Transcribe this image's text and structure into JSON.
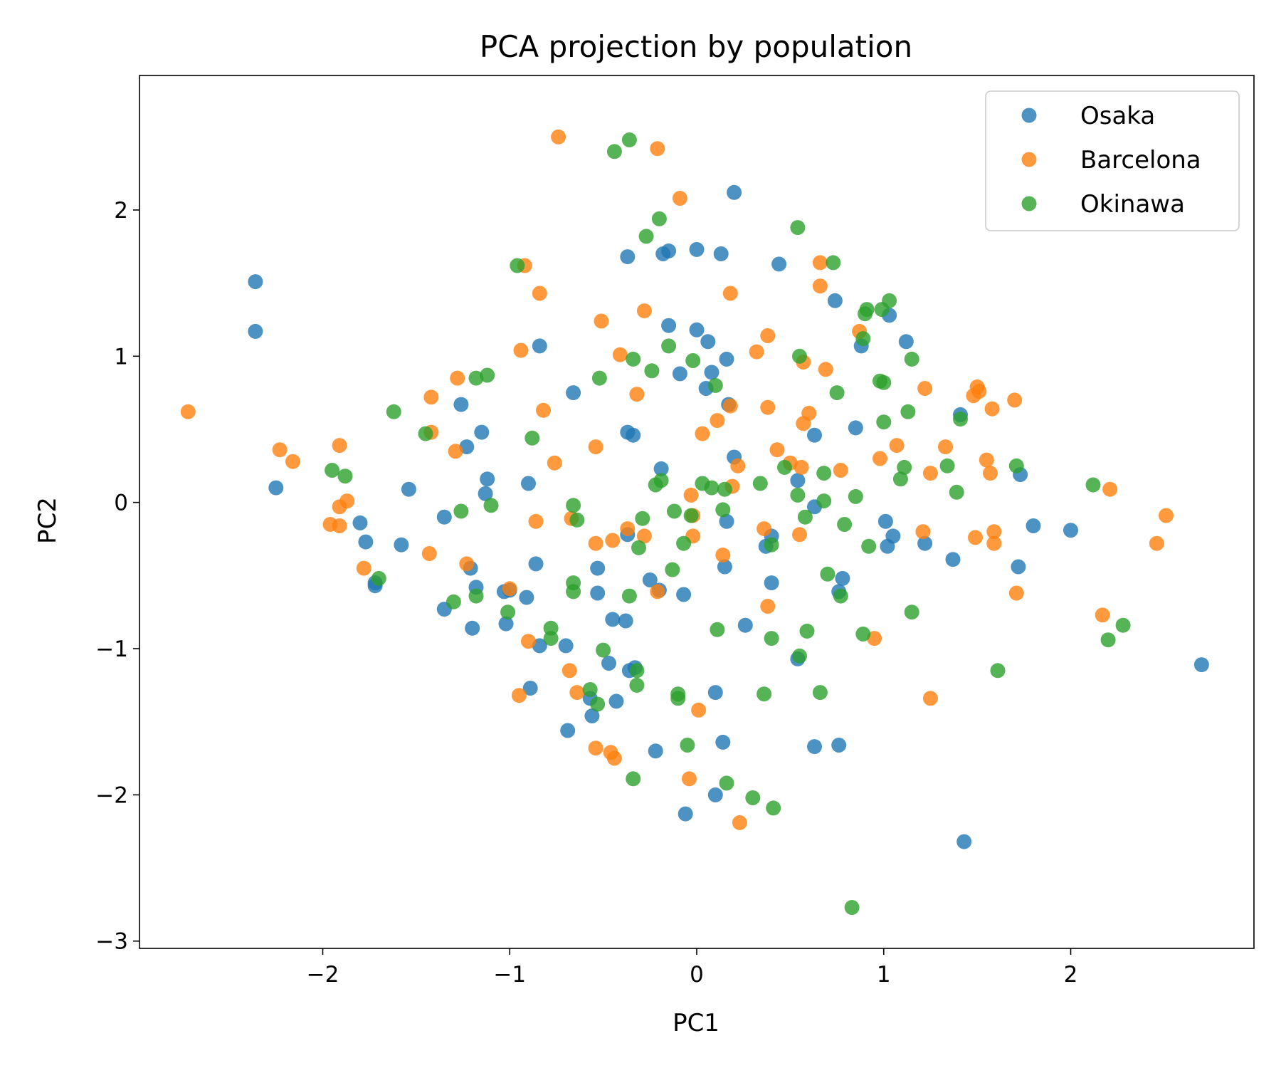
{
  "chart_data": {
    "type": "scatter",
    "title": "PCA projection by population",
    "xlabel": "PC1",
    "ylabel": "PC2",
    "xlim": [
      -2.98,
      2.98
    ],
    "ylim": [
      -3.05,
      2.92
    ],
    "xticks": [
      -2,
      -1,
      0,
      1,
      2
    ],
    "yticks": [
      -3,
      -2,
      -1,
      0,
      1,
      2
    ],
    "xtick_labels": [
      "−2",
      "−1",
      "0",
      "1",
      "2"
    ],
    "ytick_labels": [
      "−3",
      "−2",
      "−1",
      "0",
      "1",
      "2"
    ],
    "grid": false,
    "legend_position": "top-right",
    "series": [
      {
        "name": "Osaka",
        "color": "#1f77b4",
        "points": [
          [
            -2.36,
            1.51
          ],
          [
            -2.36,
            1.17
          ],
          [
            -2.25,
            0.1
          ],
          [
            -1.8,
            -0.14
          ],
          [
            -1.77,
            -0.27
          ],
          [
            -1.72,
            -0.55
          ],
          [
            -1.72,
            -0.57
          ],
          [
            -1.58,
            -0.29
          ],
          [
            -1.54,
            0.09
          ],
          [
            -1.35,
            -0.1
          ],
          [
            -1.35,
            -0.73
          ],
          [
            -1.26,
            0.67
          ],
          [
            -1.23,
            0.38
          ],
          [
            -1.21,
            -0.45
          ],
          [
            -1.2,
            -0.86
          ],
          [
            -1.18,
            -0.58
          ],
          [
            -1.15,
            0.48
          ],
          [
            -1.12,
            0.16
          ],
          [
            -1.13,
            0.06
          ],
          [
            -1.03,
            -0.61
          ],
          [
            -1.02,
            -0.83
          ],
          [
            -1.0,
            -0.6
          ],
          [
            -0.91,
            -0.65
          ],
          [
            -0.9,
            0.13
          ],
          [
            -0.89,
            -1.27
          ],
          [
            -0.86,
            -0.42
          ],
          [
            -0.84,
            -0.98
          ],
          [
            -0.84,
            1.07
          ],
          [
            -0.69,
            -1.56
          ],
          [
            -0.7,
            -0.98
          ],
          [
            -0.66,
            0.75
          ],
          [
            -0.57,
            -1.34
          ],
          [
            -0.56,
            -1.46
          ],
          [
            -0.53,
            -0.62
          ],
          [
            -0.53,
            -0.45
          ],
          [
            -0.47,
            -1.1
          ],
          [
            -0.45,
            -0.8
          ],
          [
            -0.43,
            -1.36
          ],
          [
            -0.38,
            -0.81
          ],
          [
            -0.37,
            -0.22
          ],
          [
            -0.37,
            1.68
          ],
          [
            -0.37,
            0.48
          ],
          [
            -0.36,
            -1.15
          ],
          [
            -0.34,
            0.46
          ],
          [
            -0.33,
            -1.13
          ],
          [
            -0.25,
            -0.53
          ],
          [
            -0.22,
            -1.7
          ],
          [
            -0.2,
            -0.6
          ],
          [
            -0.19,
            0.23
          ],
          [
            -0.18,
            1.7
          ],
          [
            -0.15,
            1.72
          ],
          [
            -0.15,
            1.21
          ],
          [
            -0.09,
            0.88
          ],
          [
            -0.07,
            -0.63
          ],
          [
            -0.06,
            -2.13
          ],
          [
            0.0,
            1.18
          ],
          [
            0.0,
            1.73
          ],
          [
            0.05,
            0.78
          ],
          [
            0.06,
            1.1
          ],
          [
            0.08,
            0.89
          ],
          [
            0.1,
            -1.3
          ],
          [
            0.1,
            -2.0
          ],
          [
            0.13,
            1.7
          ],
          [
            0.14,
            -1.64
          ],
          [
            0.15,
            -0.44
          ],
          [
            0.16,
            0.98
          ],
          [
            0.16,
            -0.13
          ],
          [
            0.17,
            0.67
          ],
          [
            0.2,
            0.31
          ],
          [
            0.2,
            2.12
          ],
          [
            0.26,
            -0.84
          ],
          [
            0.37,
            -0.3
          ],
          [
            0.4,
            -0.55
          ],
          [
            0.4,
            -0.23
          ],
          [
            0.44,
            1.63
          ],
          [
            0.54,
            0.15
          ],
          [
            0.54,
            -1.07
          ],
          [
            0.63,
            0.46
          ],
          [
            0.63,
            -1.67
          ],
          [
            0.63,
            -0.03
          ],
          [
            0.74,
            1.38
          ],
          [
            0.76,
            -1.66
          ],
          [
            0.76,
            -0.61
          ],
          [
            0.78,
            -0.52
          ],
          [
            0.85,
            0.51
          ],
          [
            0.88,
            1.07
          ],
          [
            1.01,
            -0.13
          ],
          [
            1.02,
            -0.3
          ],
          [
            1.03,
            1.28
          ],
          [
            1.05,
            -0.23
          ],
          [
            1.12,
            1.1
          ],
          [
            1.22,
            -0.28
          ],
          [
            1.37,
            -0.39
          ],
          [
            1.41,
            0.6
          ],
          [
            1.43,
            -2.32
          ],
          [
            1.72,
            -0.44
          ],
          [
            1.73,
            0.19
          ],
          [
            1.8,
            -0.16
          ],
          [
            2.0,
            -0.19
          ],
          [
            2.7,
            -1.11
          ]
        ]
      },
      {
        "name": "Barcelona",
        "color": "#ff7f0e",
        "points": [
          [
            -2.72,
            0.62
          ],
          [
            -2.23,
            0.36
          ],
          [
            -2.16,
            0.28
          ],
          [
            -1.96,
            -0.15
          ],
          [
            -1.91,
            0.39
          ],
          [
            -1.91,
            -0.03
          ],
          [
            -1.91,
            -0.16
          ],
          [
            -1.87,
            0.01
          ],
          [
            -1.78,
            -0.45
          ],
          [
            -1.42,
            0.72
          ],
          [
            -1.42,
            0.48
          ],
          [
            -1.43,
            -0.35
          ],
          [
            -1.29,
            0.35
          ],
          [
            -1.28,
            0.85
          ],
          [
            -1.23,
            -0.42
          ],
          [
            -1.0,
            -0.59
          ],
          [
            -0.95,
            -1.32
          ],
          [
            -0.94,
            1.04
          ],
          [
            -0.92,
            1.62
          ],
          [
            -0.9,
            -0.95
          ],
          [
            -0.86,
            -0.13
          ],
          [
            -0.84,
            1.43
          ],
          [
            -0.82,
            0.63
          ],
          [
            -0.76,
            0.27
          ],
          [
            -0.74,
            2.5
          ],
          [
            -0.68,
            -1.15
          ],
          [
            -0.67,
            -0.11
          ],
          [
            -0.64,
            -1.3
          ],
          [
            -0.54,
            0.38
          ],
          [
            -0.54,
            -0.28
          ],
          [
            -0.54,
            -1.68
          ],
          [
            -0.51,
            1.24
          ],
          [
            -0.46,
            -1.71
          ],
          [
            -0.45,
            -0.26
          ],
          [
            -0.44,
            -1.75
          ],
          [
            -0.41,
            1.01
          ],
          [
            -0.37,
            -0.18
          ],
          [
            -0.28,
            -0.23
          ],
          [
            -0.28,
            1.31
          ],
          [
            -0.21,
            -0.61
          ],
          [
            -0.21,
            2.42
          ],
          [
            -0.09,
            2.08
          ],
          [
            -0.04,
            -1.89
          ],
          [
            -0.03,
            0.05
          ],
          [
            -0.02,
            -0.09
          ],
          [
            -0.02,
            -0.23
          ],
          [
            0.01,
            -1.42
          ],
          [
            0.03,
            0.47
          ],
          [
            0.11,
            0.56
          ],
          [
            0.14,
            -0.36
          ],
          [
            0.18,
            0.66
          ],
          [
            0.18,
            1.43
          ],
          [
            0.19,
            0.11
          ],
          [
            0.22,
            0.25
          ],
          [
            0.23,
            -2.19
          ],
          [
            0.32,
            1.03
          ],
          [
            0.36,
            -0.18
          ],
          [
            0.38,
            -0.71
          ],
          [
            0.38,
            0.65
          ],
          [
            0.38,
            1.14
          ],
          [
            0.43,
            0.36
          ],
          [
            0.5,
            0.27
          ],
          [
            0.55,
            -0.22
          ],
          [
            0.56,
            0.24
          ],
          [
            0.57,
            0.54
          ],
          [
            0.57,
            0.96
          ],
          [
            0.6,
            0.61
          ],
          [
            0.66,
            1.48
          ],
          [
            0.66,
            1.64
          ],
          [
            0.69,
            0.91
          ],
          [
            0.77,
            0.22
          ],
          [
            0.95,
            -0.93
          ],
          [
            0.87,
            1.17
          ],
          [
            0.98,
            0.3
          ],
          [
            1.07,
            0.39
          ],
          [
            1.21,
            -0.2
          ],
          [
            1.22,
            0.78
          ],
          [
            1.25,
            0.2
          ],
          [
            1.25,
            -1.34
          ],
          [
            1.33,
            0.38
          ],
          [
            1.48,
            0.73
          ],
          [
            1.49,
            -0.24
          ],
          [
            1.5,
            0.79
          ],
          [
            1.51,
            0.76
          ],
          [
            1.55,
            0.29
          ],
          [
            1.57,
            0.2
          ],
          [
            1.58,
            0.64
          ],
          [
            1.59,
            -0.2
          ],
          [
            1.59,
            -0.28
          ],
          [
            1.7,
            0.7
          ],
          [
            1.71,
            -0.62
          ],
          [
            2.17,
            -0.77
          ],
          [
            2.21,
            0.09
          ],
          [
            2.46,
            -0.28
          ],
          [
            2.51,
            -0.09
          ],
          [
            -0.32,
            0.74
          ]
        ]
      },
      {
        "name": "Okinawa",
        "color": "#2ca02c",
        "points": [
          [
            -1.95,
            0.22
          ],
          [
            -1.88,
            0.18
          ],
          [
            -1.7,
            -0.52
          ],
          [
            -1.62,
            0.62
          ],
          [
            -1.45,
            0.47
          ],
          [
            -1.3,
            -0.68
          ],
          [
            -1.26,
            -0.06
          ],
          [
            -1.18,
            -0.64
          ],
          [
            -1.18,
            0.85
          ],
          [
            -1.12,
            0.87
          ],
          [
            -1.1,
            -0.02
          ],
          [
            -1.01,
            -0.75
          ],
          [
            -0.96,
            1.62
          ],
          [
            -0.88,
            0.44
          ],
          [
            -0.78,
            -0.86
          ],
          [
            -0.78,
            -0.93
          ],
          [
            -0.66,
            -0.02
          ],
          [
            -0.66,
            -0.55
          ],
          [
            -0.66,
            -0.61
          ],
          [
            -0.64,
            -0.12
          ],
          [
            -0.57,
            -1.28
          ],
          [
            -0.53,
            -1.38
          ],
          [
            -0.52,
            0.85
          ],
          [
            -0.5,
            -1.01
          ],
          [
            -0.44,
            2.4
          ],
          [
            -0.36,
            -0.64
          ],
          [
            -0.36,
            2.48
          ],
          [
            -0.34,
            -1.89
          ],
          [
            -0.34,
            0.98
          ],
          [
            -0.32,
            -1.15
          ],
          [
            -0.32,
            -1.25
          ],
          [
            -0.31,
            -0.31
          ],
          [
            -0.29,
            -0.11
          ],
          [
            -0.27,
            1.82
          ],
          [
            -0.24,
            0.9
          ],
          [
            -0.22,
            0.12
          ],
          [
            -0.2,
            1.94
          ],
          [
            -0.19,
            0.15
          ],
          [
            -0.15,
            1.07
          ],
          [
            -0.13,
            -0.46
          ],
          [
            -0.12,
            -0.06
          ],
          [
            -0.1,
            -1.34
          ],
          [
            -0.1,
            -1.31
          ],
          [
            -0.07,
            -0.28
          ],
          [
            -0.05,
            -1.66
          ],
          [
            -0.03,
            -0.09
          ],
          [
            -0.02,
            0.97
          ],
          [
            0.03,
            0.13
          ],
          [
            0.08,
            0.1
          ],
          [
            0.1,
            0.8
          ],
          [
            0.11,
            -0.87
          ],
          [
            0.14,
            -0.05
          ],
          [
            0.15,
            0.09
          ],
          [
            0.16,
            -1.92
          ],
          [
            0.3,
            -2.02
          ],
          [
            0.34,
            0.13
          ],
          [
            0.36,
            -1.31
          ],
          [
            0.4,
            -0.29
          ],
          [
            0.4,
            -0.93
          ],
          [
            0.41,
            -2.09
          ],
          [
            0.47,
            0.24
          ],
          [
            0.54,
            1.88
          ],
          [
            0.54,
            0.05
          ],
          [
            0.55,
            1.0
          ],
          [
            0.55,
            -1.05
          ],
          [
            0.58,
            -0.1
          ],
          [
            0.59,
            -0.88
          ],
          [
            0.66,
            -1.3
          ],
          [
            0.68,
            0.01
          ],
          [
            0.68,
            0.2
          ],
          [
            0.7,
            -0.49
          ],
          [
            0.73,
            1.64
          ],
          [
            0.75,
            0.75
          ],
          [
            0.77,
            -0.64
          ],
          [
            0.79,
            -0.15
          ],
          [
            0.83,
            -2.77
          ],
          [
            0.85,
            0.04
          ],
          [
            0.89,
            -0.9
          ],
          [
            0.89,
            1.12
          ],
          [
            0.9,
            1.29
          ],
          [
            0.91,
            1.32
          ],
          [
            0.92,
            -0.3
          ],
          [
            0.98,
            0.83
          ],
          [
            0.99,
            1.32
          ],
          [
            1.0,
            0.82
          ],
          [
            1.0,
            0.55
          ],
          [
            1.03,
            1.38
          ],
          [
            1.09,
            0.16
          ],
          [
            1.11,
            0.24
          ],
          [
            1.13,
            0.62
          ],
          [
            1.15,
            0.98
          ],
          [
            1.15,
            -0.75
          ],
          [
            1.34,
            0.25
          ],
          [
            1.39,
            0.07
          ],
          [
            1.41,
            0.57
          ],
          [
            1.61,
            -1.15
          ],
          [
            1.71,
            0.25
          ],
          [
            2.12,
            0.12
          ],
          [
            2.2,
            -0.94
          ],
          [
            2.28,
            -0.84
          ]
        ]
      }
    ]
  }
}
